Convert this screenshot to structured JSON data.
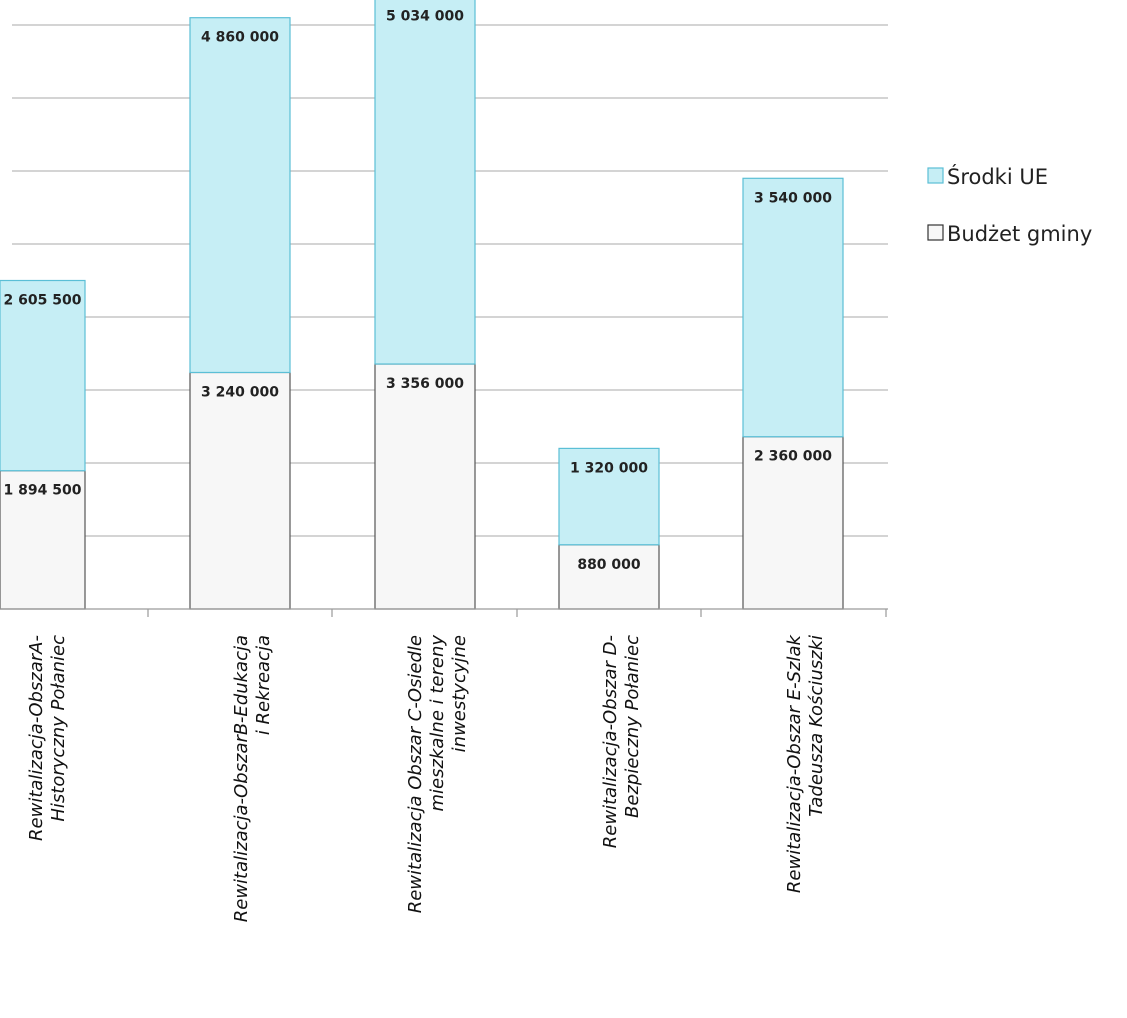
{
  "chart_data": {
    "type": "bar",
    "stacked": true,
    "categories": [
      [
        "Rewitalizacja-ObszarA-",
        "Historyczny Połaniec"
      ],
      [
        "Rewitalizacja-ObszarB-Edukacja",
        "i Rekreacja"
      ],
      [
        "Rewitalizacja Obszar  C-Osiedle",
        "mieszkalne i tereny",
        "inwestycyjne"
      ],
      [
        "Rewitalizacja-Obszar D-",
        "Bezpieczny Połaniec"
      ],
      [
        "Rewitalizacja-Obszar E-Szlak",
        "Tadeusza Kościuszki"
      ]
    ],
    "series": [
      {
        "name": "Budżet gminy",
        "color": "#f7f7f7",
        "values": [
          1894500,
          3240000,
          3356000,
          880000,
          2360000
        ],
        "labels": [
          "1 894 500",
          "3 240 000",
          "3 356 000",
          "880 000",
          "2 360 000"
        ]
      },
      {
        "name": "Środki UE",
        "color": "#c6eef5",
        "values": [
          2605500,
          4860000,
          5034000,
          1320000,
          3540000
        ],
        "labels": [
          "2 605 500",
          "4 860 000",
          "5 034 000",
          "1 320 000",
          "3 540 000"
        ]
      }
    ],
    "legend_position": "right",
    "legend_order": [
      "Środki UE",
      "Budżet gminy"
    ],
    "grid": true,
    "ylim": [
      0,
      8000000
    ],
    "gridline_step": 1000000
  }
}
